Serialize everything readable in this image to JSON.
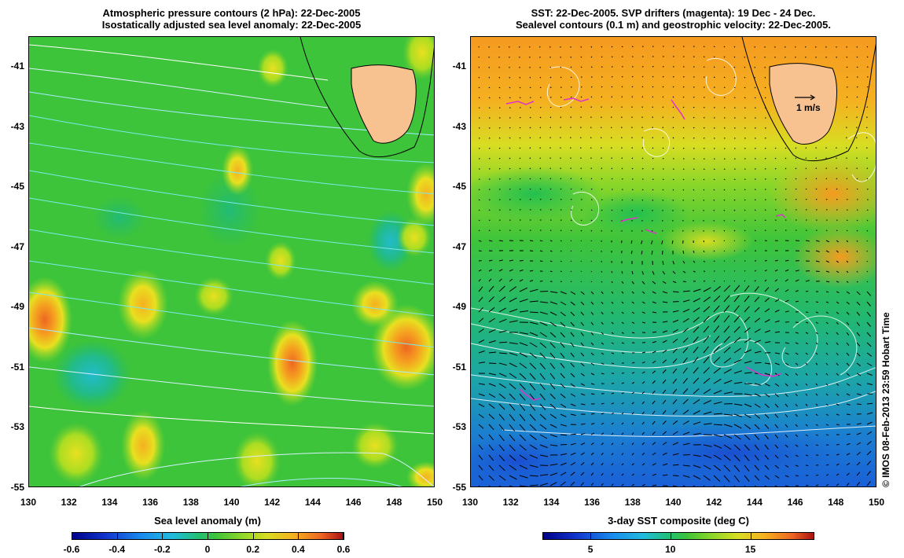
{
  "left_map": {
    "title_line1": "Atmospheric pressure contours (2 hPa): 22-Dec-2005",
    "title_line2": "Isostatically adjusted sea level anomaly: 22-Dec-2005",
    "colorbar": {
      "label": "Sea level anomaly (m)",
      "ticks": [
        "-0.6",
        "-0.4",
        "-0.2",
        "0",
        "0.2",
        "0.4",
        "0.6"
      ],
      "tick_values": [
        -0.6,
        -0.4,
        -0.2,
        0,
        0.2,
        0.4,
        0.6
      ],
      "range": [
        -0.6,
        0.6
      ]
    }
  },
  "right_map": {
    "title_line1": "SST: 22-Dec-2005. SVP drifters (magenta): 19 Dec - 24 Dec.",
    "title_line2": "Sealevel contours (0.1 m) and geostrophic velocity: 22-Dec-2005.",
    "velocity_scale_label": "1 m/s",
    "colorbar": {
      "label": "3-day SST composite (deg C)",
      "ticks": [
        "5",
        "10",
        "15"
      ],
      "tick_values": [
        5,
        10,
        15
      ],
      "range": [
        2,
        19
      ]
    }
  },
  "axes": {
    "lon_ticks": [
      "130",
      "132",
      "134",
      "136",
      "138",
      "140",
      "142",
      "144",
      "146",
      "148",
      "150"
    ],
    "lat_ticks": [
      "-41",
      "-43",
      "-45",
      "-47",
      "-49",
      "-51",
      "-53",
      "-55"
    ],
    "lon_range": [
      130,
      150
    ],
    "lat_range": [
      -55,
      -40
    ]
  },
  "credit": "© IMOS 08-Feb-2013 23:59 Hobart Time",
  "colors": {
    "land": "#f7c190",
    "slaBackground": "#33cc33",
    "contour_pressure": "#7fe8e8",
    "contour_white": "#ffffff",
    "drifter": "#dd33cc",
    "velocity_arrow": "#000000"
  }
}
